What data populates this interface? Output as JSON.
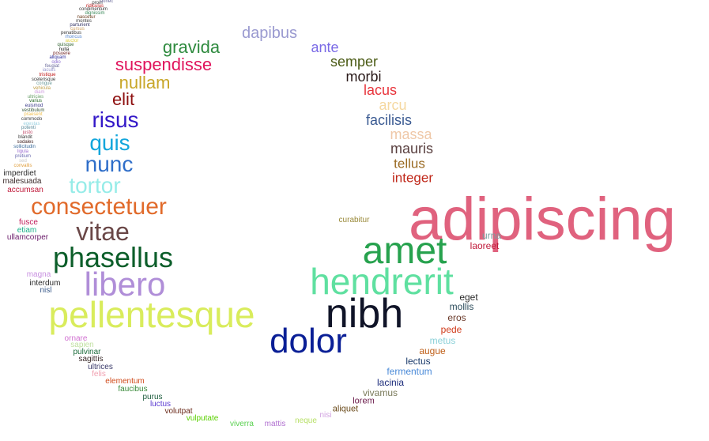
{
  "words": [
    {
      "text": "adipiscing",
      "color": "#e0627e"
    },
    {
      "text": "nibh",
      "color": "#101428"
    },
    {
      "text": "amet",
      "color": "#27a24e"
    },
    {
      "text": "hendrerit",
      "color": "#5fe0a0"
    },
    {
      "text": "dolor",
      "color": "#0a1f96"
    },
    {
      "text": "pellentesque",
      "color": "#d9ec5c"
    },
    {
      "text": "libero",
      "color": "#b08ed8"
    },
    {
      "text": "phasellus",
      "color": "#0c5e2a"
    },
    {
      "text": "vitae",
      "color": "#6a4747"
    },
    {
      "text": "consectetuer",
      "color": "#e16a2a"
    },
    {
      "text": "tortor",
      "color": "#96ece8"
    },
    {
      "text": "nunc",
      "color": "#2f6ec9"
    },
    {
      "text": "quis",
      "color": "#12a6dc"
    },
    {
      "text": "risus",
      "color": "#3318c8"
    },
    {
      "text": "elit",
      "color": "#8e1010"
    },
    {
      "text": "nullam",
      "color": "#c8a628"
    },
    {
      "text": "suspendisse",
      "color": "#e0145c"
    },
    {
      "text": "gravida",
      "color": "#2e8a3e"
    },
    {
      "text": "dapibus",
      "color": "#9a9ad0"
    },
    {
      "text": "ante",
      "color": "#7a6ae6"
    },
    {
      "text": "semper",
      "color": "#4a5a14"
    },
    {
      "text": "morbi",
      "color": "#2a1a1a"
    },
    {
      "text": "lacus",
      "color": "#e8343c"
    },
    {
      "text": "arcu",
      "color": "#f5d8a0"
    },
    {
      "text": "facilisis",
      "color": "#3a5a92"
    },
    {
      "text": "massa",
      "color": "#efc8a8"
    },
    {
      "text": "mauris",
      "color": "#5a4040"
    },
    {
      "text": "tellus",
      "color": "#9a6a22"
    },
    {
      "text": "integer",
      "color": "#c0281a"
    },
    {
      "text": "urna",
      "color": "#7aa0a0"
    },
    {
      "text": "laoreet",
      "color": "#c01a3a"
    },
    {
      "text": "eget",
      "color": "#2a2a2a"
    },
    {
      "text": "mollis",
      "color": "#2a4a5a"
    },
    {
      "text": "eros",
      "color": "#6a3a2a"
    },
    {
      "text": "pede",
      "color": "#d03a1a"
    },
    {
      "text": "metus",
      "color": "#8ad0d8"
    },
    {
      "text": "augue",
      "color": "#c0601a"
    },
    {
      "text": "lectus",
      "color": "#1a3a6a"
    },
    {
      "text": "fermentum",
      "color": "#4a8ad8"
    },
    {
      "text": "lacinia",
      "color": "#1a2a7a"
    },
    {
      "text": "vivamus",
      "color": "#7a7a5a"
    },
    {
      "text": "lorem",
      "color": "#6a1a4a"
    },
    {
      "text": "aliquet",
      "color": "#6a4a1a"
    },
    {
      "text": "nisi",
      "color": "#d0a0e0"
    },
    {
      "text": "neque",
      "color": "#b8e068"
    },
    {
      "text": "mattis",
      "color": "#b070d0"
    },
    {
      "text": "viverra",
      "color": "#5ad050"
    },
    {
      "text": "vulputate",
      "color": "#5ad000"
    },
    {
      "text": "volutpat",
      "color": "#6a2a1a"
    },
    {
      "text": "luctus",
      "color": "#5a3ad0"
    },
    {
      "text": "purus",
      "color": "#1a5a3a"
    },
    {
      "text": "faucibus",
      "color": "#3a8a3a"
    },
    {
      "text": "elementum",
      "color": "#d04a1a"
    },
    {
      "text": "felis",
      "color": "#f0a0b0"
    },
    {
      "text": "ultrices",
      "color": "#3a3a6a"
    },
    {
      "text": "sagittis",
      "color": "#3a2a2a"
    },
    {
      "text": "pulvinar",
      "color": "#1a6a3a"
    },
    {
      "text": "sapien",
      "color": "#c0e0a0"
    },
    {
      "text": "ornare",
      "color": "#d070d0"
    },
    {
      "text": "nisl",
      "color": "#3a5a8a"
    },
    {
      "text": "interdum",
      "color": "#2a2a2a"
    },
    {
      "text": "magna",
      "color": "#c890e0"
    },
    {
      "text": "ullamcorper",
      "color": "#6a1a6a"
    },
    {
      "text": "etiam",
      "color": "#1ab08a"
    },
    {
      "text": "fusce",
      "color": "#c01a5a"
    },
    {
      "text": "accumsan",
      "color": "#c01a3a"
    },
    {
      "text": "malesuada",
      "color": "#3a2a2a"
    },
    {
      "text": "imperdiet",
      "color": "#2a2a2a"
    },
    {
      "text": "convallis",
      "color": "#e0a040"
    },
    {
      "text": "sed",
      "color": "#c8c8c8"
    },
    {
      "text": "pretium",
      "color": "#6a6ab0"
    },
    {
      "text": "ligula",
      "color": "#9a6ad0"
    },
    {
      "text": "sollicitudin",
      "color": "#3a6a9a"
    },
    {
      "text": "sodales",
      "color": "#3a1a1a"
    },
    {
      "text": "blandit",
      "color": "#3a3a3a"
    },
    {
      "text": "justo",
      "color": "#c04a6a"
    },
    {
      "text": "potenti",
      "color": "#5a8a9a"
    },
    {
      "text": "egestas",
      "color": "#9ad0e0"
    },
    {
      "text": "commodo",
      "color": "#3a3a3a"
    },
    {
      "text": "praesent",
      "color": "#f0c050"
    },
    {
      "text": "vestibulum",
      "color": "#3a5a3a"
    },
    {
      "text": "euismod",
      "color": "#3a3a8a"
    },
    {
      "text": "varius",
      "color": "#2a6a2a"
    },
    {
      "text": "ultricies",
      "color": "#6aa06a"
    },
    {
      "text": "diam",
      "color": "#d0a0e0"
    },
    {
      "text": "vehicula",
      "color": "#c0a04a"
    },
    {
      "text": "congue",
      "color": "#6a9a9a"
    },
    {
      "text": "scelerisque",
      "color": "#3a3a3a"
    },
    {
      "text": "tristique",
      "color": "#c01a1a"
    },
    {
      "text": "iaculis",
      "color": "#9a9ad0"
    },
    {
      "text": "feugiat",
      "color": "#6a6a9a"
    },
    {
      "text": "odio",
      "color": "#8a6ad0"
    },
    {
      "text": "aliquam",
      "color": "#2a2a9a"
    },
    {
      "text": "posuere",
      "color": "#6a1a1a"
    },
    {
      "text": "nulla",
      "color": "#1a1a1a"
    },
    {
      "text": "quisque",
      "color": "#3a6a3a"
    },
    {
      "text": "auctor",
      "color": "#e0d040"
    },
    {
      "text": "rhoncus",
      "color": "#5a8ad0"
    },
    {
      "text": "penatibus",
      "color": "#3a3a3a"
    },
    {
      "text": "cursus",
      "color": "#d0a060"
    },
    {
      "text": "parturient",
      "color": "#3a3a6a"
    },
    {
      "text": "montes",
      "color": "#3a3a3a"
    },
    {
      "text": "nascetur",
      "color": "#6a3a1a"
    },
    {
      "text": "dignissim",
      "color": "#3a8a5a"
    },
    {
      "text": "condimentum",
      "color": "#3a3a3a"
    },
    {
      "text": "ridiculus",
      "color": "#c01a1a"
    },
    {
      "text": "proin",
      "color": "#3a3a3a"
    },
    {
      "text": "donec",
      "color": "#6a6a9a"
    },
    {
      "text": "curabitur",
      "color": "#9a8a3a"
    }
  ]
}
